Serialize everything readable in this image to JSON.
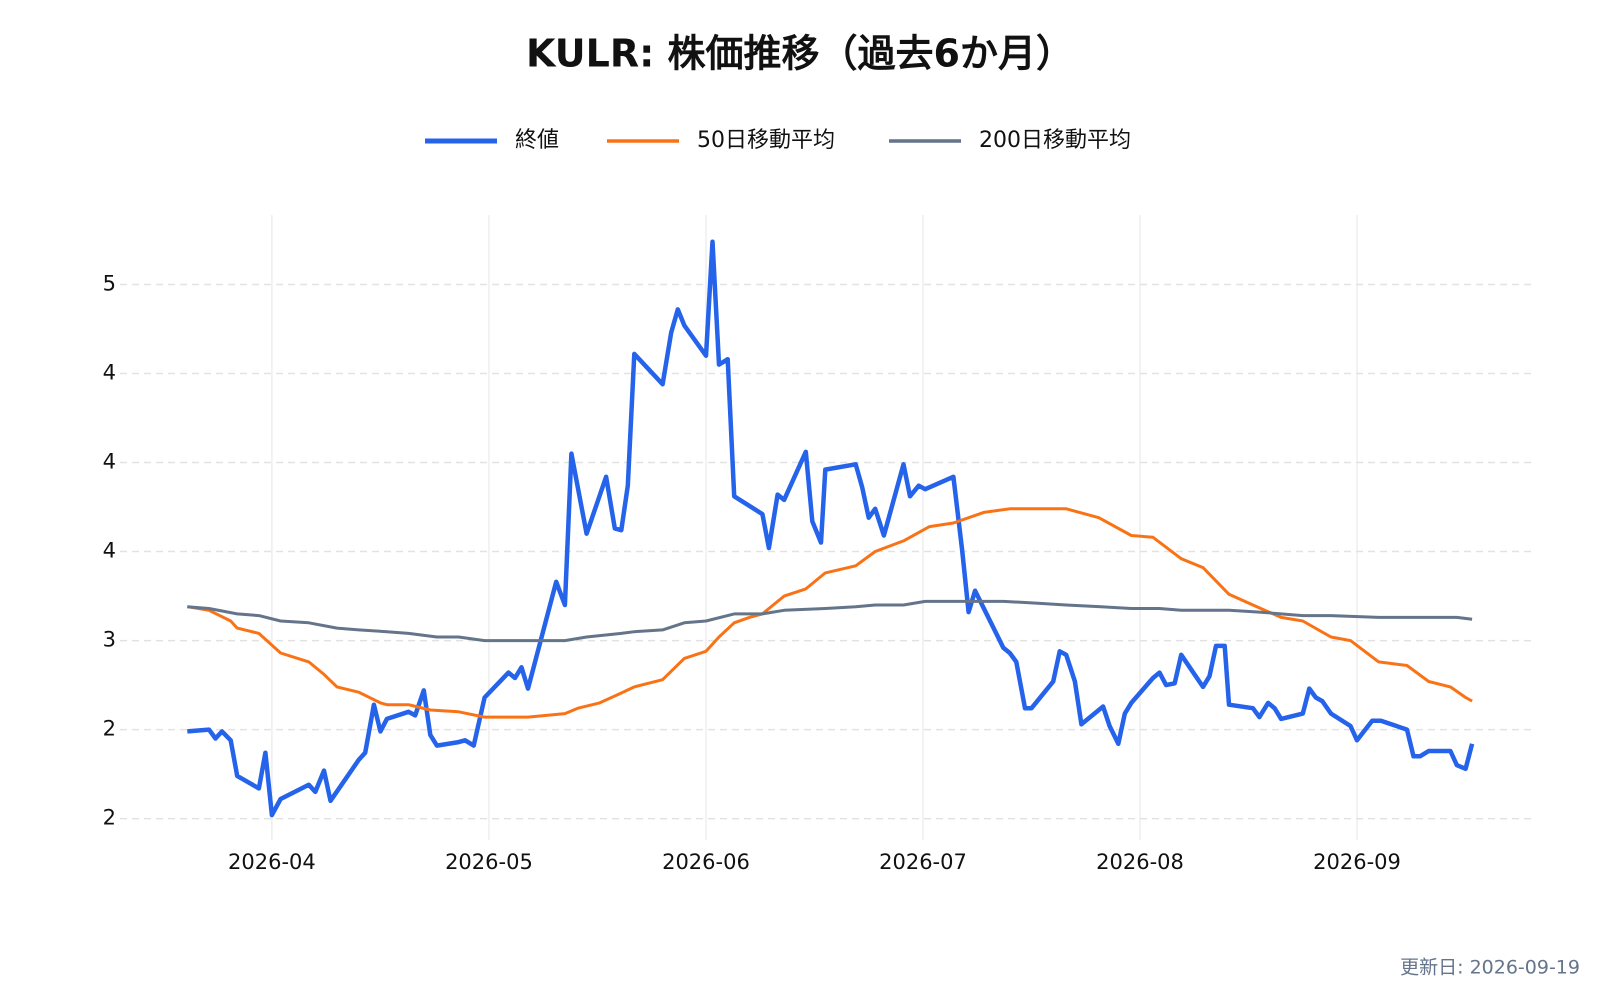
{
  "chart_data": {
    "type": "line",
    "title": "KULR: 株価推移（過去6か月）",
    "annotation": "更新日: 2026-09-19",
    "xlim": [
      3.3,
      9.82
    ],
    "ylim": [
      1.88,
      5.39
    ],
    "xticks": [
      {
        "value": 4,
        "label": "2026-04"
      },
      {
        "value": 5,
        "label": "2026-05"
      },
      {
        "value": 6,
        "label": "2026-06"
      },
      {
        "value": 7,
        "label": "2026-07"
      },
      {
        "value": 8,
        "label": "2026-08"
      },
      {
        "value": 9,
        "label": "2026-09"
      }
    ],
    "yticks": [
      2,
      {
        "value": 2.5,
        "label": "2"
      },
      3,
      {
        "value": 3.5,
        "label": "4"
      },
      4,
      {
        "value": 4.5,
        "label": "4"
      },
      5
    ],
    "grid": true,
    "legend": "top",
    "series": [
      {
        "name": "終値",
        "color": "#2563eb",
        "x": [
          3.61,
          3.71,
          3.74,
          3.77,
          3.81,
          3.84,
          3.94,
          3.97,
          4.0,
          4.04,
          4.17,
          4.2,
          4.24,
          4.27,
          4.4,
          4.43,
          4.47,
          4.5,
          4.53,
          4.63,
          4.66,
          4.7,
          4.73,
          4.76,
          4.86,
          4.89,
          4.93,
          4.98,
          5.09,
          5.12,
          5.15,
          5.18,
          5.31,
          5.35,
          5.38,
          5.45,
          5.54,
          5.58,
          5.61,
          5.64,
          5.67,
          5.8,
          5.84,
          5.87,
          5.9,
          6.0,
          6.03,
          6.06,
          6.1,
          6.13,
          6.26,
          6.29,
          6.33,
          6.36,
          6.46,
          6.49,
          6.53,
          6.55,
          6.69,
          6.72,
          6.75,
          6.78,
          6.82,
          6.91,
          6.94,
          6.98,
          7.01,
          7.14,
          7.18,
          7.21,
          7.24,
          7.37,
          7.4,
          7.43,
          7.47,
          7.5,
          7.6,
          7.63,
          7.66,
          7.7,
          7.73,
          7.83,
          7.86,
          7.9,
          7.93,
          7.96,
          8.06,
          8.09,
          8.12,
          8.16,
          8.19,
          8.29,
          8.32,
          8.35,
          8.39,
          8.41,
          8.52,
          8.55,
          8.59,
          8.62,
          8.65,
          8.75,
          8.78,
          8.81,
          8.84,
          8.88,
          8.97,
          9.0,
          9.07,
          9.11,
          9.23,
          9.26,
          9.29,
          9.33,
          9.43,
          9.46,
          9.5,
          9.53
        ],
        "values": [
          2.49,
          2.5,
          2.45,
          2.49,
          2.44,
          2.24,
          2.17,
          2.37,
          2.02,
          2.11,
          2.19,
          2.15,
          2.27,
          2.1,
          2.33,
          2.37,
          2.64,
          2.49,
          2.56,
          2.6,
          2.58,
          2.72,
          2.47,
          2.41,
          2.43,
          2.44,
          2.41,
          2.68,
          2.82,
          2.79,
          2.85,
          2.73,
          3.33,
          3.2,
          4.05,
          3.6,
          3.92,
          3.63,
          3.62,
          3.87,
          4.61,
          4.44,
          4.73,
          4.86,
          4.77,
          4.6,
          5.24,
          4.55,
          4.58,
          3.81,
          3.71,
          3.52,
          3.82,
          3.79,
          4.06,
          3.67,
          3.55,
          3.96,
          3.99,
          3.86,
          3.69,
          3.74,
          3.59,
          3.99,
          3.81,
          3.87,
          3.85,
          3.92,
          3.51,
          3.16,
          3.28,
          2.96,
          2.93,
          2.88,
          2.62,
          2.62,
          2.77,
          2.94,
          2.92,
          2.77,
          2.53,
          2.63,
          2.52,
          2.42,
          2.59,
          2.65,
          2.79,
          2.82,
          2.75,
          2.76,
          2.92,
          2.74,
          2.8,
          2.97,
          2.97,
          2.64,
          2.62,
          2.57,
          2.65,
          2.62,
          2.56,
          2.59,
          2.73,
          2.68,
          2.66,
          2.59,
          2.52,
          2.44,
          2.55,
          2.55,
          2.5,
          2.35,
          2.35,
          2.38,
          2.38,
          2.3,
          2.28,
          2.42
        ]
      },
      {
        "name": "50日移動平均",
        "color": "#f97316",
        "x": [
          3.61,
          3.71,
          3.81,
          3.84,
          3.94,
          4.04,
          4.17,
          4.24,
          4.3,
          4.4,
          4.5,
          4.53,
          4.63,
          4.73,
          4.86,
          4.98,
          5.18,
          5.35,
          5.41,
          5.51,
          5.6,
          5.67,
          5.8,
          5.9,
          6.0,
          6.06,
          6.13,
          6.2,
          6.26,
          6.36,
          6.46,
          6.55,
          6.69,
          6.78,
          6.91,
          7.03,
          7.14,
          7.28,
          7.4,
          7.53,
          7.66,
          7.81,
          7.96,
          8.06,
          8.19,
          8.29,
          8.41,
          8.52,
          8.65,
          8.75,
          8.88,
          8.97,
          9.1,
          9.23,
          9.33,
          9.43,
          9.5,
          9.53
        ],
        "values": [
          3.19,
          3.17,
          3.11,
          3.07,
          3.04,
          2.93,
          2.88,
          2.81,
          2.74,
          2.71,
          2.65,
          2.64,
          2.64,
          2.61,
          2.6,
          2.57,
          2.57,
          2.59,
          2.62,
          2.65,
          2.7,
          2.74,
          2.78,
          2.9,
          2.94,
          3.02,
          3.1,
          3.13,
          3.15,
          3.25,
          3.29,
          3.38,
          3.42,
          3.5,
          3.56,
          3.64,
          3.66,
          3.72,
          3.74,
          3.74,
          3.74,
          3.69,
          3.59,
          3.58,
          3.46,
          3.41,
          3.26,
          3.2,
          3.13,
          3.11,
          3.02,
          3.0,
          2.88,
          2.86,
          2.77,
          2.74,
          2.68,
          2.66
        ]
      },
      {
        "name": "200日移動平均",
        "color": "#64748b",
        "x": [
          3.61,
          3.71,
          3.84,
          3.94,
          4.04,
          4.17,
          4.3,
          4.4,
          4.53,
          4.63,
          4.76,
          4.86,
          4.98,
          5.18,
          5.35,
          5.45,
          5.61,
          5.67,
          5.8,
          5.9,
          6.0,
          6.13,
          6.26,
          6.36,
          6.55,
          6.69,
          6.78,
          6.91,
          7.01,
          7.18,
          7.37,
          7.53,
          7.66,
          7.82,
          7.96,
          8.09,
          8.19,
          8.41,
          8.55,
          8.75,
          8.88,
          9.1,
          9.33,
          9.46,
          9.53
        ],
        "values": [
          3.19,
          3.18,
          3.15,
          3.14,
          3.11,
          3.1,
          3.07,
          3.06,
          3.05,
          3.04,
          3.02,
          3.02,
          3.0,
          3.0,
          3.0,
          3.02,
          3.04,
          3.05,
          3.06,
          3.1,
          3.11,
          3.15,
          3.15,
          3.17,
          3.18,
          3.19,
          3.2,
          3.2,
          3.22,
          3.22,
          3.22,
          3.21,
          3.2,
          3.19,
          3.18,
          3.18,
          3.17,
          3.17,
          3.16,
          3.14,
          3.14,
          3.13,
          3.13,
          3.13,
          3.12
        ]
      }
    ]
  }
}
